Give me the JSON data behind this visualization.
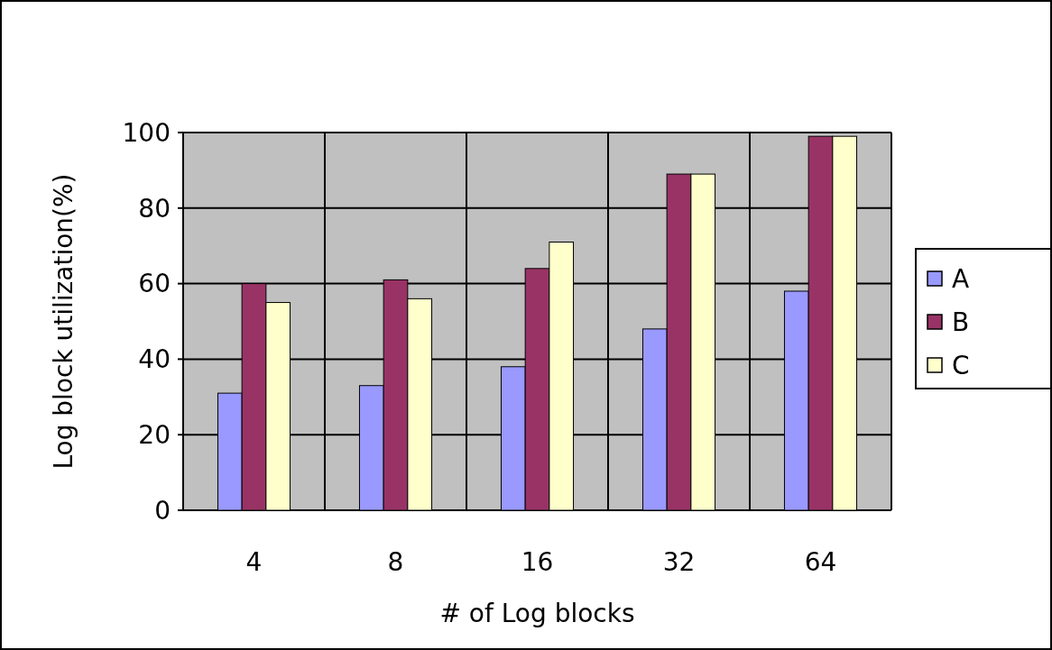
{
  "chart_data": {
    "type": "bar",
    "xlabel": "# of Log blocks",
    "ylabel": "Log block utilization(%)",
    "categories": [
      "4",
      "8",
      "16",
      "32",
      "64"
    ],
    "series": [
      {
        "name": "A",
        "color": "#9999ff",
        "values": [
          31,
          33,
          38,
          48,
          58
        ]
      },
      {
        "name": "B",
        "color": "#993366",
        "values": [
          60,
          61,
          64,
          89,
          99
        ]
      },
      {
        "name": "C",
        "color": "#ffffcc",
        "values": [
          55,
          56,
          71,
          89,
          99
        ]
      }
    ],
    "ylim": [
      0,
      100
    ],
    "yticks": [
      0,
      20,
      40,
      60,
      80,
      100
    ],
    "grid": true,
    "legend": "right"
  }
}
